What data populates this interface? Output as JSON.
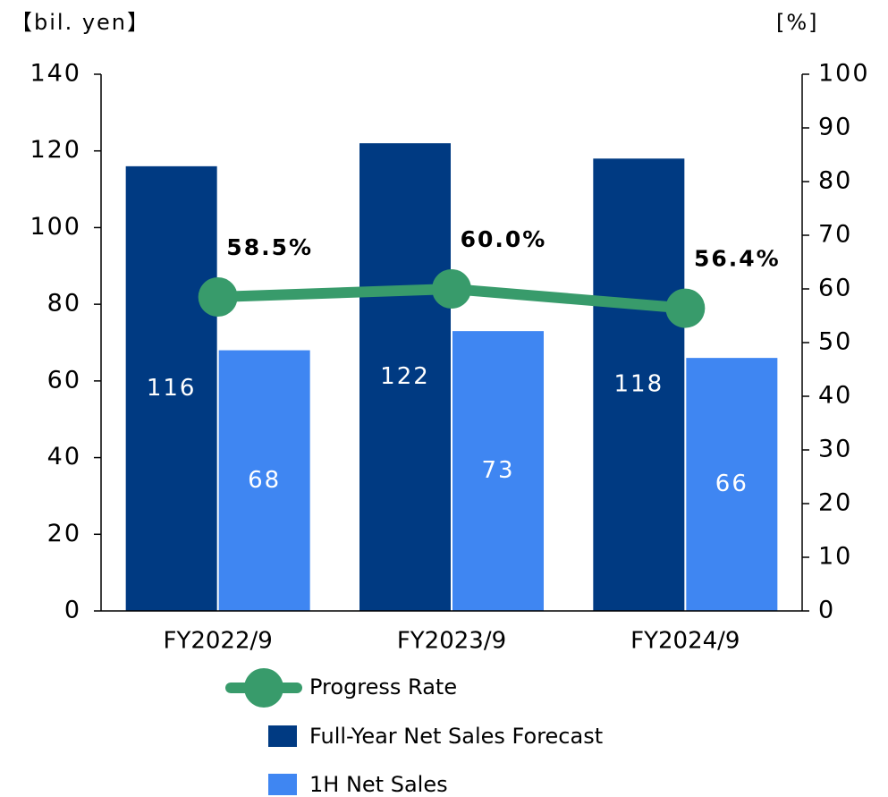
{
  "chart_data": {
    "type": "bar",
    "y_label": "【bil. yen】",
    "y2_label": "[%]",
    "categories": [
      "FY2022/9",
      "FY2023/9",
      "FY2024/9"
    ],
    "series": [
      {
        "name": "Progress Rate",
        "type": "line",
        "axis": "y2",
        "color": "#389b6b",
        "values": [
          58.5,
          60.0,
          56.4
        ],
        "value_labels": [
          "58.5%",
          "60.0%",
          "56.4%"
        ]
      },
      {
        "name": "Full-Year Net Sales Forecast",
        "type": "bar",
        "color": "#003a82",
        "values": [
          116,
          122,
          118
        ]
      },
      {
        "name": "1H Net Sales",
        "type": "bar",
        "color": "#3f86f2",
        "values": [
          68,
          73,
          66
        ]
      }
    ],
    "ylim": [
      0,
      140
    ],
    "yticks": [
      0,
      20,
      40,
      60,
      80,
      100,
      120,
      140
    ],
    "y2lim": [
      0,
      100
    ],
    "y2ticks": [
      0,
      10,
      20,
      30,
      40,
      50,
      60,
      70,
      80,
      90,
      100
    ]
  }
}
